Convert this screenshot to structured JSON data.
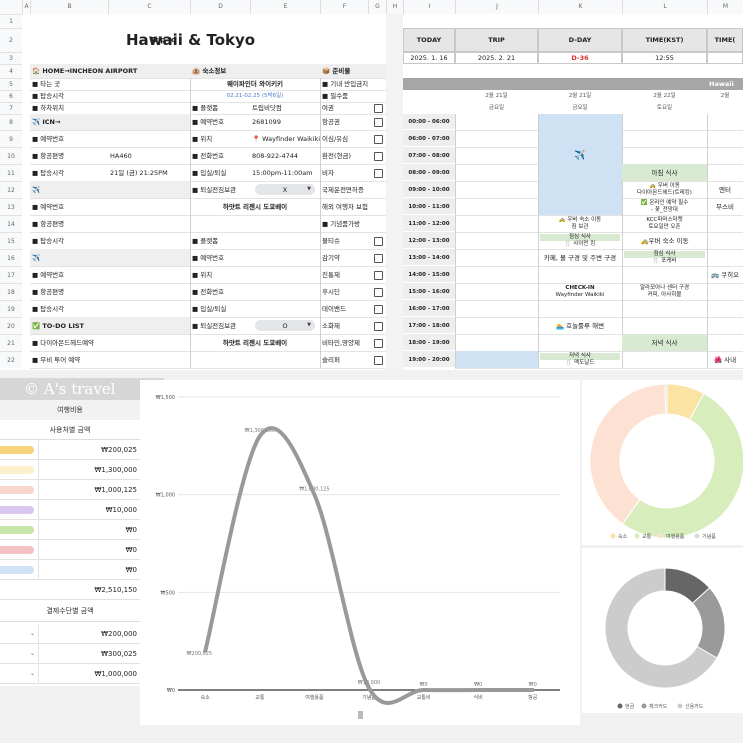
{
  "sheet": {
    "columns": [
      "A",
      "B",
      "C",
      "D",
      "E",
      "F",
      "G",
      "H",
      "I",
      "J",
      "K",
      "L",
      "M"
    ],
    "row_numbers": [
      1,
      2,
      3,
      4,
      5,
      6,
      7,
      8,
      9,
      10,
      11,
      12,
      13,
      14,
      15,
      16,
      17,
      18,
      19,
      20,
      21,
      22
    ]
  },
  "planner": {
    "rows": [
      {},
      {
        "B": "Trip to",
        "D": "Hawaii & Tokyo"
      },
      {},
      {
        "B": "🏠 HOME→INCHEON AIRPORT",
        "D": "🏨 숙소정보",
        "F": "📦 준비물"
      },
      {
        "B": "■ 타는 곳",
        "D": "웨이파인더 와이키키",
        "F": "■ 기내 반입금지 물품"
      },
      {
        "B": "■ 탑승시각",
        "D": "02.21-02.25 (5박6일)",
        "F": "■ 필수품"
      },
      {
        "B": "■ 하차위치",
        "D": "■ 플랫폼",
        "E": "트립비닷컴",
        "F": "여권"
      },
      {
        "B": "✈️ ICN→",
        "D": "■ 예약번호",
        "E": "2681099",
        "F": "항공권"
      },
      {
        "B": "■ 예약번호",
        "D": "■ 위치",
        "E": "📍 Wayfinder Waikiki",
        "F": "이심/유심"
      },
      {
        "B": "■ 항공편명",
        "C": "HA460",
        "D": "■ 전화번호",
        "E": "808-922-4744",
        "F": "환전(현금)"
      },
      {
        "B": "■ 탑승시각",
        "C": "21일 (금) 21:25PM",
        "D": "■ 입실/퇴실",
        "E": "15:00pm-11:00am",
        "F": "비자"
      },
      {
        "B": "✈️",
        "D": "■ 퇴실전짐보관",
        "E": "X",
        "F": "국제운전면허증"
      },
      {
        "B": "■ 예약번호",
        "D": "하얏트 리젠시 도쿄베이",
        "F": "해외 여행자 보험"
      },
      {
        "B": "■ 항공편명",
        "F": "■ 기념품가방"
      },
      {
        "B": "■ 탑승시각",
        "D": "■ 플랫폼",
        "F": "물티슈"
      },
      {
        "B": "✈️",
        "D": "■ 예약번호",
        "F": "감기약"
      },
      {
        "B": "■ 예약번호",
        "D": "■ 위치",
        "F": "진통제"
      },
      {
        "B": "■ 항공편명",
        "D": "■ 전화번호",
        "F": "후시딘"
      },
      {
        "B": "■ 탑승시각",
        "D": "■ 입실/퇴실",
        "F": "데이밴드"
      },
      {
        "B": "✅ TO-DO LIST",
        "D": "■ 퇴실전짐보관",
        "E": "O",
        "F": "소화제"
      },
      {
        "B": "■ 다이아몬드헤드예약",
        "D": "하얏트 리젠시 도쿄베이",
        "F": "비타민,영양제"
      },
      {
        "B": "■ 무비 투어 예약",
        "F": "슬리퍼"
      }
    ]
  },
  "schedule": {
    "rows": [
      {},
      {
        "I": "TODAY",
        "J": "TRIP",
        "K": "D-DAY",
        "L": "TIME(KST)",
        "M": "TIME("
      },
      {
        "I": "2025. 1. 16",
        "J": "2025. 2. 21",
        "K": "D-36",
        "L": "12:55"
      },
      {},
      {
        "M": "Hawaii"
      },
      {
        "J": "2월 21일",
        "K": "2월 21일",
        "L": "2월 22일",
        "M": "2월"
      },
      {
        "J": "금요일",
        "K": "금요일",
        "L": "토요일"
      },
      {
        "I": "00:00 - 06:00"
      },
      {
        "I": "06:00 - 07:00"
      },
      {
        "I": "07:00 - 08:00",
        "K": "✈️"
      },
      {
        "I": "08:00 - 09:00",
        "L": "아침 식사"
      },
      {
        "I": "09:00 - 10:00",
        "L": [
          "🚕 우버 이동",
          "다이아몬드헤드(트레킹)"
        ],
        "M": "엔터"
      },
      {
        "I": "10:00 - 11:00",
        "L": [
          "✅ 온라인 예약 필수",
          "- 꽃_전망대"
        ],
        "M": "무스비"
      },
      {
        "I": "11:00 - 12:00",
        "K": [
          "🚕 우버 숙소 이동",
          "짐 보관"
        ],
        "L": [
          "KCC파머스마켓",
          "토요일만 오픈"
        ]
      },
      {
        "I": "12:00 - 13:00",
        "K": [
          "점심 식사",
          "🍴 사이먼 킹"
        ],
        "L": "🚕우버 숙소 이동"
      },
      {
        "I": "13:00 - 14:00",
        "K": "카페, 몰 구경 및 주변 구경",
        "L": [
          "점심 식사",
          "🍴 포케바"
        ]
      },
      {
        "I": "14:00 - 15:00",
        "M": "🚌 쿠히오"
      },
      {
        "I": "15:00 - 16:00",
        "K": [
          "CHECK-IN",
          "Wayfinder Waikiki"
        ],
        "L": [
          "알라모아나 센터 구경",
          "커피, 아사히볼"
        ]
      },
      {
        "I": "16:00 - 17:00"
      },
      {
        "I": "17:00 - 18:00",
        "K": "🏊 호놀룰루 해변"
      },
      {
        "I": "18:00 - 19:00",
        "L": "저녁 식사"
      },
      {
        "I": "19:00 - 20:00",
        "K": [
          "저녁 식사",
          "🍴 맥도날드"
        ],
        "M": "🌺 사내"
      }
    ]
  },
  "expense_table": {
    "watermark": "© A's travel",
    "title": "여행비용",
    "section_usage": "사용처별 금액",
    "usage": [
      {
        "color": "#f9d27c",
        "amount": "₩200,025"
      },
      {
        "color": "#fdf1cc",
        "amount": "₩1,300,000"
      },
      {
        "color": "#f9d6cb",
        "amount": "₩1,000,125"
      },
      {
        "color": "#d8c6ef",
        "amount": "₩10,000"
      },
      {
        "color": "#c6e5a6",
        "amount": "₩0"
      },
      {
        "color": "#f3c1c1",
        "amount": "₩0"
      },
      {
        "color": "#cfe2f6",
        "amount": "₩0"
      }
    ],
    "total": "₩2,510,150",
    "section_payment": "결제수단별 금액",
    "payment": [
      "₩200,000",
      "₩300,025",
      "₩1,000,000"
    ]
  },
  "chart_data": [
    {
      "type": "line",
      "categories": [
        "숙소",
        "교통",
        "여행용품",
        "기념품",
        "교통비",
        "식비",
        "항공"
      ],
      "values": [
        200025,
        1300000,
        1000125,
        10000,
        0,
        0,
        0
      ],
      "value_labels": [
        "₩200,025",
        "₩1,300,000",
        "₩1,000,125",
        "₩10,000",
        "₩0",
        "₩0",
        "₩0"
      ],
      "color": "#999999",
      "ylim": [
        0,
        1500000
      ],
      "yticks": [
        {
          "value": 0,
          "label": "₩0"
        },
        {
          "value": 500000,
          "label": "₩500"
        },
        {
          "value": 1000000,
          "label": "₩1,000"
        },
        {
          "value": 1500000,
          "label": "₩1,500"
        }
      ],
      "grid": true
    },
    {
      "type": "pie",
      "categories": [
        "숙소",
        "교통",
        "여행용품",
        "기념품"
      ],
      "values": [
        200025,
        1300000,
        1000125,
        10000
      ],
      "colors": [
        "#fbe3a4",
        "#d7edbc",
        "#fde1d2",
        "#d9d9d9"
      ],
      "legend": "bottom"
    },
    {
      "type": "pie",
      "categories": [
        "현금",
        "체크카드",
        "신용카드"
      ],
      "values": [
        200000,
        300025,
        1000000
      ],
      "colors": [
        "#666666",
        "#9a9a9a",
        "#cccccc"
      ],
      "legend": "bottom"
    }
  ]
}
